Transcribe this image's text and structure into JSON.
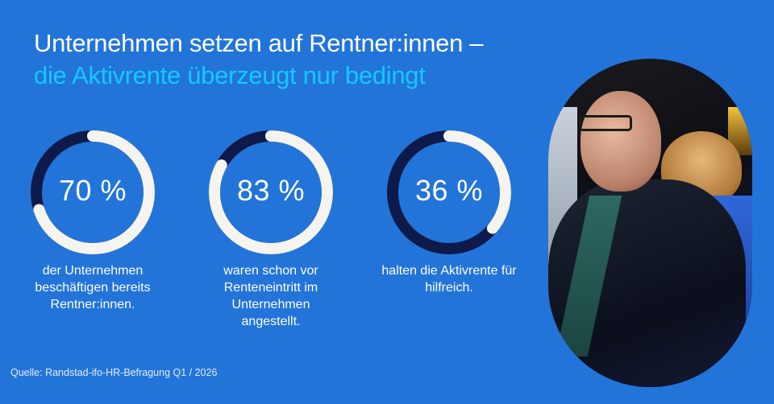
{
  "header": {
    "title_line1": "Unternehmen setzen auf Rentner:innen –",
    "title_line2": "die Aktivrente überzeugt nur bedingt"
  },
  "stats": [
    {
      "value_label": "70 %",
      "value": 70,
      "description": "der Unternehmen beschäftigen bereits Rentner:innen."
    },
    {
      "value_label": "83 %",
      "value": 83,
      "description": "waren schon vor Renteneintritt im Unternehmen angestellt."
    },
    {
      "value_label": "36 %",
      "value": 36,
      "description": "halten die Aktivrente für hilfreich."
    }
  ],
  "footer": {
    "source": "Quelle: Randstad-ifo-HR-Befragung Q1 / 2026"
  },
  "colors": {
    "background": "#2274d9",
    "title_primary": "#ffffff",
    "title_accent": "#16c8ff",
    "ring_filled": "#f5f4ef",
    "ring_remainder": "#0d1a4a"
  },
  "chart_data": {
    "type": "pie",
    "subtype": "donut",
    "title": "Unternehmen setzen auf Rentner:innen – die Aktivrente überzeugt nur bedingt",
    "categories": [
      "der Unternehmen beschäftigen bereits Rentner:innen.",
      "waren schon vor Renteneintritt im Unternehmen angestellt.",
      "halten die Aktivrente für hilfreich."
    ],
    "values": [
      70,
      83,
      36
    ],
    "unit": "%",
    "source": "Quelle: Randstad-ifo-HR-Befragung Q1 / 2026"
  }
}
